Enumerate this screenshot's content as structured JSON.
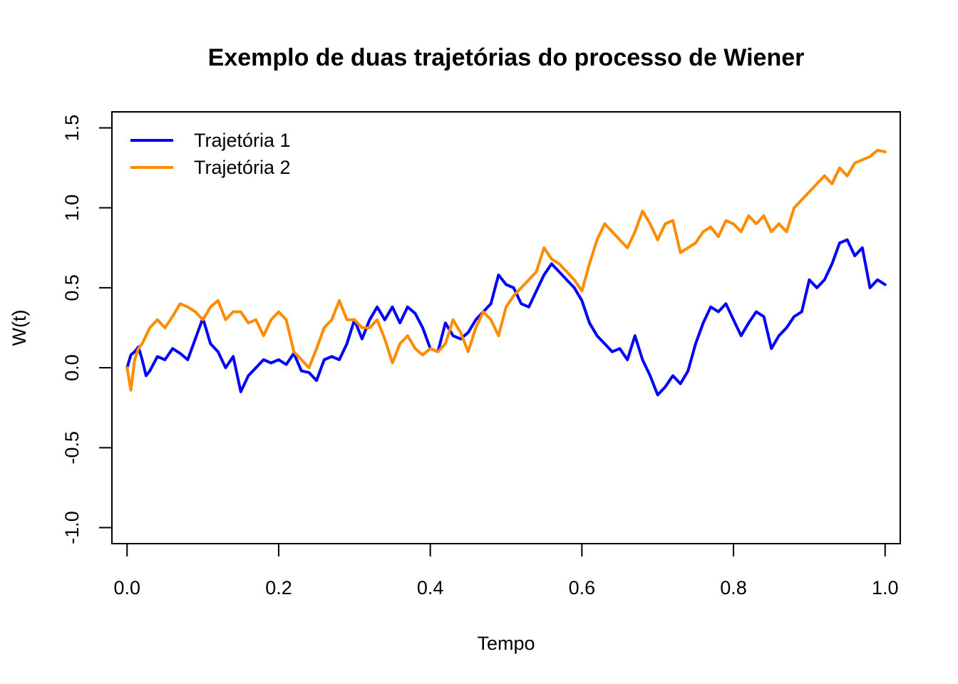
{
  "chart_data": {
    "type": "line",
    "title": "Exemplo de duas trajetórias do processo de Wiener",
    "xlabel": "Tempo",
    "ylabel": "W(t)",
    "xlim": [
      -0.02,
      1.02
    ],
    "ylim": [
      -1.1,
      1.6
    ],
    "x_ticks": [
      "0.0",
      "0.2",
      "0.4",
      "0.6",
      "0.8",
      "1.0"
    ],
    "y_ticks": [
      "-1.0",
      "-0.5",
      "0.0",
      "0.5",
      "1.0",
      "1.5"
    ],
    "grid": false,
    "legend_position": "top-left",
    "series": [
      {
        "name": "Trajetória 1",
        "color": "#0000ff",
        "x": [
          0.0,
          0.005,
          0.01,
          0.015,
          0.02,
          0.025,
          0.03,
          0.04,
          0.05,
          0.06,
          0.07,
          0.08,
          0.09,
          0.1,
          0.11,
          0.12,
          0.13,
          0.14,
          0.15,
          0.16,
          0.17,
          0.18,
          0.19,
          0.2,
          0.21,
          0.22,
          0.23,
          0.24,
          0.25,
          0.26,
          0.27,
          0.28,
          0.29,
          0.3,
          0.31,
          0.32,
          0.33,
          0.34,
          0.35,
          0.36,
          0.37,
          0.38,
          0.39,
          0.4,
          0.41,
          0.42,
          0.43,
          0.44,
          0.45,
          0.46,
          0.47,
          0.48,
          0.49,
          0.5,
          0.51,
          0.52,
          0.53,
          0.54,
          0.55,
          0.56,
          0.57,
          0.58,
          0.59,
          0.6,
          0.61,
          0.62,
          0.63,
          0.64,
          0.65,
          0.66,
          0.67,
          0.68,
          0.69,
          0.7,
          0.71,
          0.72,
          0.73,
          0.74,
          0.75,
          0.76,
          0.77,
          0.78,
          0.79,
          0.8,
          0.81,
          0.82,
          0.83,
          0.84,
          0.85,
          0.86,
          0.87,
          0.88,
          0.89,
          0.9,
          0.91,
          0.92,
          0.93,
          0.94,
          0.95,
          0.96,
          0.97,
          0.98,
          0.99,
          1.0
        ],
        "values": [
          0.0,
          0.08,
          0.1,
          0.13,
          0.05,
          -0.05,
          -0.02,
          0.07,
          0.05,
          0.12,
          0.09,
          0.05,
          0.18,
          0.31,
          0.15,
          0.1,
          0.0,
          0.07,
          -0.15,
          -0.05,
          0.0,
          0.05,
          0.03,
          0.05,
          0.02,
          0.09,
          -0.02,
          -0.03,
          -0.08,
          0.05,
          0.07,
          0.05,
          0.15,
          0.3,
          0.18,
          0.3,
          0.38,
          0.3,
          0.38,
          0.28,
          0.38,
          0.34,
          0.25,
          0.12,
          0.1,
          0.28,
          0.2,
          0.18,
          0.22,
          0.3,
          0.35,
          0.4,
          0.58,
          0.52,
          0.5,
          0.4,
          0.38,
          0.48,
          0.58,
          0.65,
          0.6,
          0.55,
          0.5,
          0.42,
          0.28,
          0.2,
          0.15,
          0.1,
          0.12,
          0.05,
          0.2,
          0.05,
          -0.05,
          -0.17,
          -0.12,
          -0.05,
          -0.1,
          -0.02,
          0.15,
          0.28,
          0.38,
          0.35,
          0.4,
          0.3,
          0.2,
          0.28,
          0.35,
          0.32,
          0.12,
          0.2,
          0.25,
          0.32,
          0.35,
          0.55,
          0.5,
          0.55,
          0.65,
          0.78,
          0.8,
          0.7,
          0.75,
          0.5,
          0.55,
          0.52
        ]
      },
      {
        "name": "Trajetória 2",
        "color": "#ff8c00",
        "x": [
          0.0,
          0.005,
          0.01,
          0.015,
          0.02,
          0.025,
          0.03,
          0.04,
          0.05,
          0.06,
          0.07,
          0.08,
          0.09,
          0.1,
          0.11,
          0.12,
          0.13,
          0.14,
          0.15,
          0.16,
          0.17,
          0.18,
          0.19,
          0.2,
          0.21,
          0.22,
          0.23,
          0.24,
          0.25,
          0.26,
          0.27,
          0.28,
          0.29,
          0.3,
          0.31,
          0.32,
          0.33,
          0.34,
          0.35,
          0.36,
          0.37,
          0.38,
          0.39,
          0.4,
          0.41,
          0.42,
          0.43,
          0.44,
          0.45,
          0.46,
          0.47,
          0.48,
          0.49,
          0.5,
          0.51,
          0.52,
          0.53,
          0.54,
          0.55,
          0.56,
          0.57,
          0.58,
          0.59,
          0.6,
          0.61,
          0.62,
          0.63,
          0.64,
          0.65,
          0.66,
          0.67,
          0.68,
          0.69,
          0.7,
          0.71,
          0.72,
          0.73,
          0.74,
          0.75,
          0.76,
          0.77,
          0.78,
          0.79,
          0.8,
          0.81,
          0.82,
          0.83,
          0.84,
          0.85,
          0.86,
          0.87,
          0.88,
          0.89,
          0.9,
          0.91,
          0.92,
          0.93,
          0.94,
          0.95,
          0.96,
          0.97,
          0.98,
          0.99,
          1.0
        ],
        "values": [
          0.0,
          -0.14,
          0.05,
          0.12,
          0.15,
          0.2,
          0.25,
          0.3,
          0.25,
          0.32,
          0.4,
          0.38,
          0.35,
          0.3,
          0.38,
          0.42,
          0.3,
          0.35,
          0.35,
          0.28,
          0.3,
          0.2,
          0.3,
          0.35,
          0.3,
          0.1,
          0.05,
          0.0,
          0.12,
          0.25,
          0.3,
          0.42,
          0.3,
          0.3,
          0.25,
          0.25,
          0.3,
          0.18,
          0.03,
          0.15,
          0.2,
          0.12,
          0.08,
          0.12,
          0.1,
          0.15,
          0.3,
          0.22,
          0.1,
          0.25,
          0.35,
          0.3,
          0.2,
          0.38,
          0.45,
          0.5,
          0.55,
          0.6,
          0.75,
          0.68,
          0.65,
          0.6,
          0.55,
          0.48,
          0.65,
          0.8,
          0.9,
          0.85,
          0.8,
          0.75,
          0.85,
          0.98,
          0.9,
          0.8,
          0.9,
          0.92,
          0.72,
          0.75,
          0.78,
          0.85,
          0.88,
          0.82,
          0.92,
          0.9,
          0.85,
          0.95,
          0.9,
          0.95,
          0.85,
          0.9,
          0.85,
          1.0,
          1.05,
          1.1,
          1.15,
          1.2,
          1.15,
          1.25,
          1.2,
          1.28,
          1.3,
          1.32,
          1.36,
          1.35
        ]
      }
    ]
  }
}
